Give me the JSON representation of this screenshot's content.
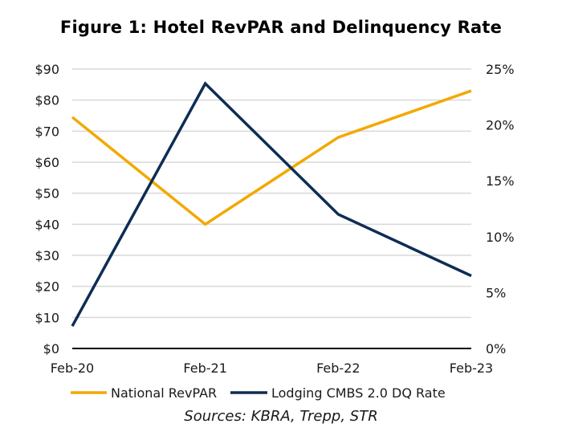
{
  "chart_data": {
    "type": "line",
    "title": "Figure 1: Hotel RevPAR and Delinquency Rate",
    "categories": [
      "Feb-20",
      "Feb-21",
      "Feb-22",
      "Feb-23"
    ],
    "xlabel": "",
    "ylabel_left": "",
    "ylabel_right": "",
    "y_left": {
      "lim": [
        0,
        90
      ],
      "ticks": [
        0,
        10,
        20,
        30,
        40,
        50,
        60,
        70,
        80,
        90
      ],
      "tick_labels": [
        "$0",
        "$10",
        "$20",
        "$30",
        "$40",
        "$50",
        "$60",
        "$70",
        "$80",
        "$90"
      ]
    },
    "y_right": {
      "lim": [
        0,
        25
      ],
      "ticks": [
        0,
        5,
        10,
        15,
        20,
        25
      ],
      "tick_labels": [
        "0%",
        "5%",
        "10%",
        "15%",
        "20%",
        "25%"
      ]
    },
    "grid": true,
    "series": [
      {
        "name": "National RevPAR",
        "axis": "left",
        "color": "#F2A900",
        "values": [
          74.5,
          40,
          68,
          83
        ]
      },
      {
        "name": "Lodging CMBS 2.0 DQ Rate",
        "axis": "right",
        "color": "#0E2D54",
        "values": [
          2.0,
          23.7,
          12.0,
          6.5
        ]
      }
    ],
    "legend": {
      "placement": "bottom"
    },
    "annotations": [
      "Sources: KBRA, Trepp, STR"
    ]
  },
  "footer": {
    "sources": "Sources: KBRA, Trepp, STR"
  },
  "colors": {
    "gridline": "#d9d9d9",
    "axis": "#000000"
  }
}
